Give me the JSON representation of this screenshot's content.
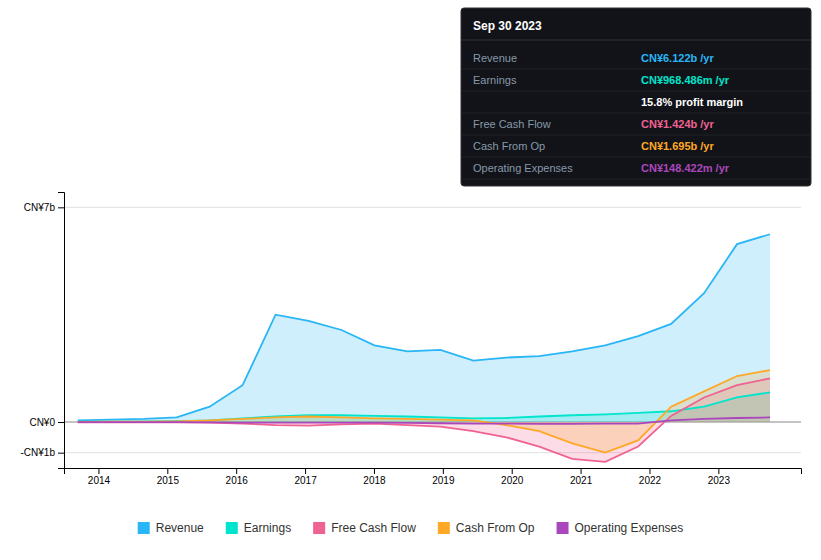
{
  "chart_data": {
    "type": "area",
    "x": [
      2013.7,
      2014.1785714285713,
      2014.6571428571428,
      2015.1357142857144,
      2015.6142857142856,
      2016.0928571428572,
      2016.5714285714287,
      2017.05,
      2017.5285714285715,
      2018.0071428571428,
      2018.4857142857143,
      2018.9642857142858,
      2019.442857142857,
      2019.9214285714286,
      2020.4,
      2020.8785714285714,
      2021.357142857143,
      2021.8357142857142,
      2022.3142857142857,
      2022.7928571428572,
      2023.2714285714285,
      2023.75
    ],
    "xlim": [
      2013.5,
      2024.2
    ],
    "xticks": [
      2014,
      2015,
      2016,
      2017,
      2018,
      2019,
      2020,
      2021,
      2022,
      2023
    ],
    "ylim": [
      -1500000000,
      7500000000
    ],
    "yticks": [
      {
        "value": 7000000000,
        "label": "CN¥7b"
      },
      {
        "value": 0,
        "label": "CN¥0"
      },
      {
        "value": -1000000000,
        "label": "-CN¥1b"
      }
    ],
    "grid": true,
    "legend": "bottom",
    "series": [
      {
        "name": "Revenue",
        "color": "#29b6f6",
        "values": [
          50000000,
          80000000,
          100000000,
          150000000,
          500000000,
          1200000000,
          3500000000,
          3300000000,
          3000000000,
          2500000000,
          2300000000,
          2350000000,
          2000000000,
          2100000000,
          2150000000,
          2300000000,
          2500000000,
          2800000000,
          3200000000,
          4200000000,
          5800000000,
          6122000000
        ]
      },
      {
        "name": "Earnings",
        "color": "#00e5cc",
        "values": [
          10000000,
          15000000,
          20000000,
          25000000,
          50000000,
          120000000,
          180000000,
          220000000,
          220000000,
          200000000,
          180000000,
          150000000,
          120000000,
          130000000,
          180000000,
          220000000,
          250000000,
          300000000,
          350000000,
          500000000,
          800000000,
          968000000
        ]
      },
      {
        "name": "Free Cash Flow",
        "color": "#f06292",
        "values": [
          -10000000,
          -10000000,
          -10000000,
          -10000000,
          -20000000,
          -50000000,
          -100000000,
          -120000000,
          -80000000,
          -50000000,
          -100000000,
          -150000000,
          -300000000,
          -500000000,
          -800000000,
          -1200000000,
          -1300000000,
          -800000000,
          200000000,
          800000000,
          1200000000,
          1424000000
        ]
      },
      {
        "name": "Cash From Op",
        "color": "#ffa726",
        "values": [
          5000000,
          8000000,
          10000000,
          20000000,
          50000000,
          100000000,
          150000000,
          180000000,
          150000000,
          120000000,
          100000000,
          80000000,
          50000000,
          -100000000,
          -300000000,
          -700000000,
          -1000000000,
          -600000000,
          500000000,
          1000000000,
          1500000000,
          1695000000
        ]
      },
      {
        "name": "Operating Expenses",
        "color": "#ab47bc",
        "type": "line",
        "values": [
          -5000000,
          -5000000,
          -5000000,
          -5000000,
          -10000000,
          -20000000,
          -20000000,
          -20000000,
          -20000000,
          -20000000,
          -30000000,
          -40000000,
          -50000000,
          -50000000,
          -60000000,
          -60000000,
          -50000000,
          -50000000,
          50000000,
          100000000,
          130000000,
          148000000
        ]
      }
    ],
    "annotation": {
      "title": "Sep 30 2023",
      "rows": [
        {
          "label": "Revenue",
          "value": "CN¥6.122b /yr",
          "color": "#29b6f6"
        },
        {
          "label": "Earnings",
          "value": "CN¥968.486m /yr",
          "color": "#00e5cc"
        },
        {
          "value": "15.8% profit margin",
          "color": "#ffffff"
        },
        {
          "label": "Free Cash Flow",
          "value": "CN¥1.424b /yr",
          "color": "#f06292"
        },
        {
          "label": "Cash From Op",
          "value": "CN¥1.695b /yr",
          "color": "#ffa726"
        },
        {
          "label": "Operating Expenses",
          "value": "CN¥148.422m /yr",
          "color": "#ab47bc"
        }
      ]
    }
  }
}
